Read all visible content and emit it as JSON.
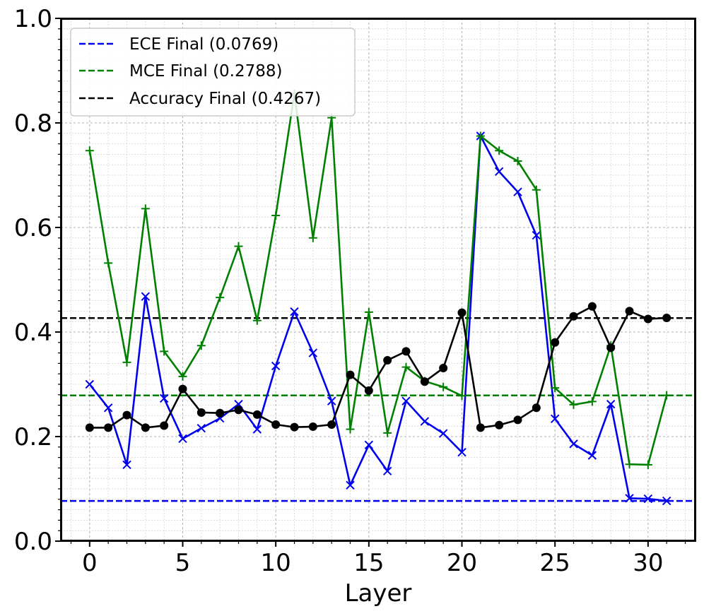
{
  "chart_data": {
    "type": "line",
    "xlabel": "Layer",
    "ylabel": "",
    "xlim": [
      -1.55,
      32.55
    ],
    "ylim": [
      0,
      1.0
    ],
    "xticks": [
      "0",
      "5",
      "10",
      "15",
      "20",
      "25",
      "30"
    ],
    "yticks": [
      "0.0",
      "0.2",
      "0.4",
      "0.6",
      "0.8",
      "1.0"
    ],
    "grid": true,
    "legend_position": "top-left",
    "x": [
      0,
      1,
      2,
      3,
      4,
      5,
      6,
      7,
      8,
      9,
      10,
      11,
      12,
      13,
      14,
      15,
      16,
      17,
      18,
      19,
      20,
      21,
      22,
      23,
      24,
      25,
      26,
      27,
      28,
      29,
      30,
      31
    ],
    "series": [
      {
        "key": "ece",
        "color": "#0000ee",
        "marker": "x",
        "values": [
          0.3,
          0.255,
          0.146,
          0.468,
          0.273,
          0.196,
          0.216,
          0.235,
          0.262,
          0.214,
          0.335,
          0.439,
          0.36,
          0.268,
          0.107,
          0.184,
          0.134,
          0.268,
          0.229,
          0.206,
          0.17,
          0.775,
          0.707,
          0.668,
          0.585,
          0.234,
          0.186,
          0.164,
          0.262,
          0.082,
          0.081,
          0.077
        ]
      },
      {
        "key": "mce",
        "color": "#008000",
        "marker": "+",
        "values": [
          0.747,
          0.532,
          0.342,
          0.636,
          0.363,
          0.315,
          0.374,
          0.466,
          0.564,
          0.422,
          0.623,
          0.856,
          0.58,
          0.81,
          0.214,
          0.438,
          0.207,
          0.333,
          0.306,
          0.295,
          0.278,
          0.775,
          0.747,
          0.727,
          0.672,
          0.293,
          0.261,
          0.267,
          0.374,
          0.147,
          0.146,
          0.279
        ]
      },
      {
        "key": "accuracy",
        "color": "#000000",
        "marker": "o",
        "values": [
          0.217,
          0.217,
          0.241,
          0.217,
          0.221,
          0.291,
          0.246,
          0.245,
          0.251,
          0.242,
          0.223,
          0.218,
          0.219,
          0.223,
          0.318,
          0.288,
          0.346,
          0.363,
          0.305,
          0.331,
          0.437,
          0.217,
          0.222,
          0.232,
          0.255,
          0.38,
          0.43,
          0.449,
          0.37,
          0.44,
          0.425,
          0.427
        ]
      }
    ],
    "reference_lines": [
      {
        "key": "ece",
        "value": 0.0769,
        "color": "#0000ee",
        "label": "ECE Final (0.0769)"
      },
      {
        "key": "mce",
        "value": 0.2788,
        "color": "#008000",
        "label": "MCE Final (0.2788)"
      },
      {
        "key": "accuracy",
        "value": 0.4267,
        "color": "#000000",
        "label": "Accuracy Final (0.4267)"
      }
    ]
  }
}
